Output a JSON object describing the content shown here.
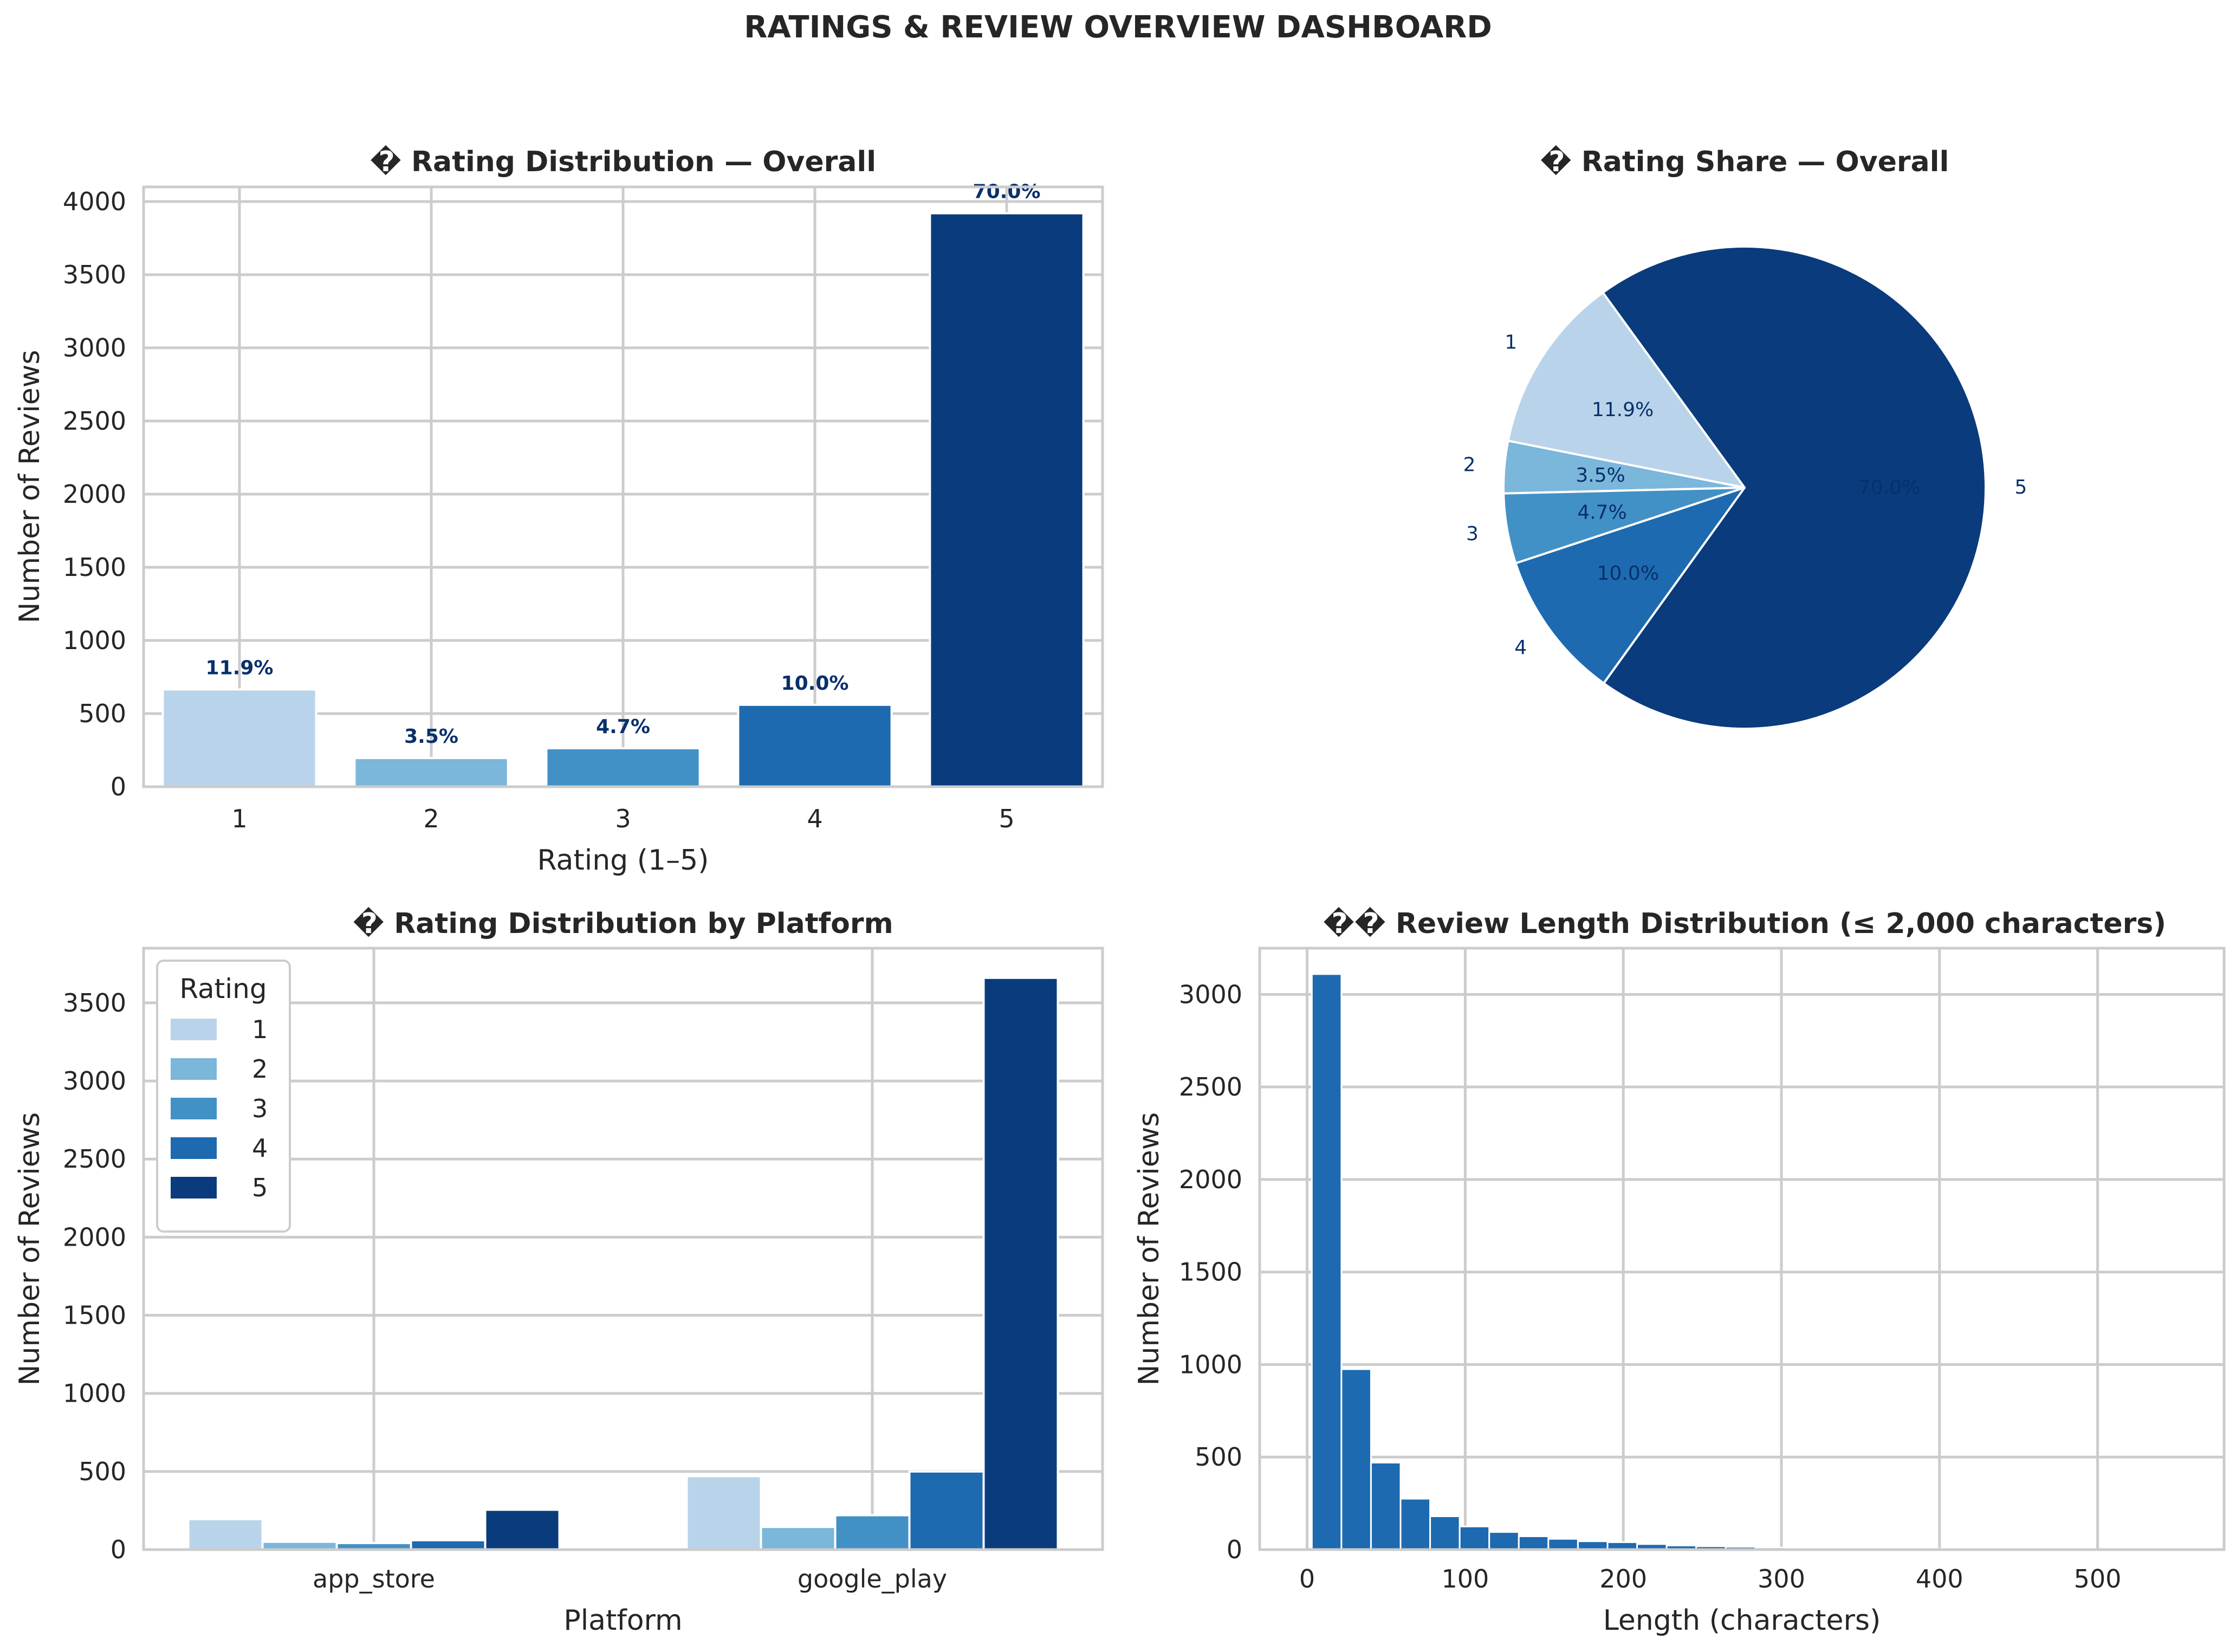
{
  "title": "RATINGS & REVIEW OVERVIEW DASHBOARD",
  "colors": {
    "r1": "#b9d4ea",
    "r2": "#7bb6db",
    "r3": "#4291c6",
    "r4": "#1d6ab0",
    "r5": "#0a3b7c",
    "hist": "#1d6ab0"
  },
  "chart_data": [
    {
      "type": "bar",
      "title": "� Rating Distribution — Overall",
      "xlabel": "Rating (1–5)",
      "ylabel": "Number of Reviews",
      "categories": [
        "1",
        "2",
        "3",
        "4",
        "5"
      ],
      "values": [
        665,
        196,
        263,
        560,
        3920
      ],
      "data_labels": [
        "11.9%",
        "3.5%",
        "4.7%",
        "10.0%",
        "70.0%"
      ],
      "ylim": [
        0,
        4100
      ],
      "yticks": [
        0,
        500,
        1000,
        1500,
        2000,
        2500,
        3000,
        3500,
        4000
      ],
      "grid": true
    },
    {
      "type": "pie",
      "title": "� Rating Share — Overall",
      "labels": [
        "1",
        "2",
        "3",
        "4",
        "5"
      ],
      "values": [
        11.9,
        3.5,
        4.7,
        10.0,
        70.0
      ],
      "pct_labels": [
        "11.9%",
        "3.5%",
        "4.7%",
        "10.0%",
        "70.0%"
      ]
    },
    {
      "type": "bar",
      "title": "� Rating Distribution by Platform",
      "xlabel": "Platform",
      "ylabel": "Number of Reviews",
      "categories": [
        "app_store",
        "google_play"
      ],
      "legend_title": "Rating",
      "legend_position": "upper-left",
      "series": [
        {
          "name": "1",
          "values": [
            195,
            470
          ]
        },
        {
          "name": "2",
          "values": [
            50,
            145
          ]
        },
        {
          "name": "3",
          "values": [
            42,
            220
          ]
        },
        {
          "name": "4",
          "values": [
            60,
            500
          ]
        },
        {
          "name": "5",
          "values": [
            255,
            3660
          ]
        }
      ],
      "ylim": [
        0,
        3850
      ],
      "yticks": [
        0,
        500,
        1000,
        1500,
        2000,
        2500,
        3000,
        3500
      ],
      "grid": true
    },
    {
      "type": "histogram",
      "title": "�� Review Length Distribution (≤ 2,000 characters)",
      "xlabel": "Length (characters)",
      "ylabel": "Number of Reviews",
      "bin_width": 18.7,
      "bin_start": 3,
      "values": [
        3110,
        975,
        470,
        275,
        180,
        125,
        95,
        72,
        58,
        45,
        40,
        30,
        22,
        18,
        15,
        12,
        10,
        8,
        7,
        6,
        5,
        4,
        4,
        3,
        3,
        3,
        2,
        2,
        2,
        1,
        1
      ],
      "xlim": [
        -30,
        580
      ],
      "ylim": [
        0,
        3250
      ],
      "xticks": [
        0,
        100,
        200,
        300,
        400,
        500
      ],
      "yticks": [
        0,
        500,
        1000,
        1500,
        2000,
        2500,
        3000
      ],
      "grid": true
    }
  ]
}
